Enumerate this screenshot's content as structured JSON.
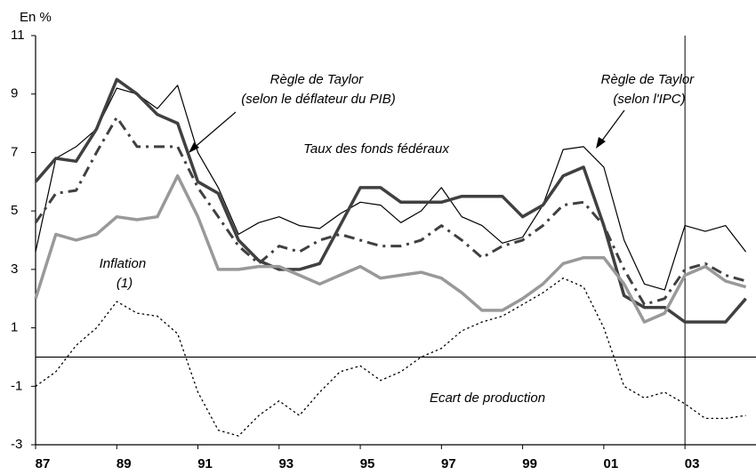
{
  "chart_data": {
    "type": "line",
    "ylabel": "En %",
    "x": [
      1987.0,
      1987.5,
      1988.0,
      1988.5,
      1989.0,
      1989.5,
      1990.0,
      1990.5,
      1991.0,
      1991.5,
      1992.0,
      1992.5,
      1993.0,
      1993.5,
      1994.0,
      1994.5,
      1995.0,
      1995.5,
      1996.0,
      1996.5,
      1997.0,
      1997.5,
      1998.0,
      1998.5,
      1999.0,
      1999.5,
      2000.0,
      2000.5,
      2001.0,
      2001.5,
      2002.0,
      2002.5,
      2003.0,
      2003.5,
      2004.0,
      2004.5
    ],
    "series": [
      {
        "name": "Règle de Taylor (selon l'IPC)",
        "color": "#000000",
        "values": [
          3.6,
          6.8,
          7.2,
          7.8,
          9.2,
          9.0,
          8.5,
          9.3,
          7.0,
          5.8,
          4.2,
          4.6,
          4.8,
          4.5,
          4.4,
          4.9,
          5.3,
          5.2,
          4.6,
          5.0,
          5.8,
          4.8,
          4.5,
          3.9,
          4.1,
          5.2,
          7.1,
          7.2,
          6.5,
          4.0,
          2.5,
          2.3,
          4.5,
          4.3,
          4.5,
          3.6
        ]
      },
      {
        "name": "Taux des fonds fédéraux",
        "color": "#404040",
        "values": [
          6.0,
          6.8,
          6.7,
          7.8,
          9.5,
          9.0,
          8.3,
          8.0,
          6.0,
          5.6,
          4.0,
          3.3,
          3.0,
          3.0,
          3.2,
          4.5,
          5.8,
          5.8,
          5.3,
          5.3,
          5.3,
          5.5,
          5.5,
          5.5,
          4.8,
          5.2,
          6.2,
          6.5,
          4.5,
          2.1,
          1.7,
          1.7,
          1.2,
          1.2,
          1.2,
          2.0
        ]
      },
      {
        "name": "Règle de Taylor (selon le déflateur du PIB)",
        "color": "#404040",
        "values": [
          4.6,
          5.6,
          5.7,
          7.0,
          8.2,
          7.2,
          7.2,
          7.2,
          5.8,
          4.8,
          3.8,
          3.2,
          3.8,
          3.6,
          4.0,
          4.2,
          4.0,
          3.8,
          3.8,
          4.0,
          4.5,
          4.0,
          3.4,
          3.8,
          4.0,
          4.5,
          5.2,
          5.3,
          4.5,
          3.0,
          1.8,
          2.0,
          3.0,
          3.2,
          2.8,
          2.6
        ]
      },
      {
        "name": "Inflation (1)",
        "color": "#999999",
        "values": [
          2.0,
          4.2,
          4.0,
          4.2,
          4.8,
          4.7,
          4.8,
          6.2,
          4.8,
          3.0,
          3.0,
          3.1,
          3.1,
          2.8,
          2.5,
          2.8,
          3.1,
          2.7,
          2.8,
          2.9,
          2.7,
          2.2,
          1.6,
          1.6,
          2.0,
          2.5,
          3.2,
          3.4,
          3.4,
          2.5,
          1.2,
          1.5,
          2.8,
          3.1,
          2.6,
          2.4
        ]
      },
      {
        "name": "Ecart de production",
        "color": "#000000",
        "values": [
          -1.0,
          -0.5,
          0.4,
          1.0,
          1.9,
          1.5,
          1.4,
          0.8,
          -1.2,
          -2.5,
          -2.7,
          -2.0,
          -1.5,
          -2.0,
          -1.2,
          -0.5,
          -0.3,
          -0.8,
          -0.5,
          0.0,
          0.3,
          0.9,
          1.2,
          1.4,
          1.8,
          2.2,
          2.7,
          2.4,
          1.0,
          -1.0,
          -1.4,
          -1.2,
          -1.6,
          -2.1,
          -2.1,
          -2.0
        ]
      }
    ],
    "xlim": [
      1987,
      2004.75
    ],
    "xticks": [
      {
        "value": 1987,
        "label": "87"
      },
      {
        "value": 1989,
        "label": "89"
      },
      {
        "value": 1991,
        "label": "91"
      },
      {
        "value": 1993,
        "label": "93"
      },
      {
        "value": 1995,
        "label": "95"
      },
      {
        "value": 1997,
        "label": "97"
      },
      {
        "value": 1999,
        "label": "99"
      },
      {
        "value": 2001,
        "label": "01"
      },
      {
        "value": 2003,
        "label": "03"
      }
    ],
    "ylim": [
      -3,
      11
    ],
    "yticks": [
      -3,
      -1,
      1,
      3,
      5,
      7,
      9,
      11
    ],
    "vline": 2003
  }
}
